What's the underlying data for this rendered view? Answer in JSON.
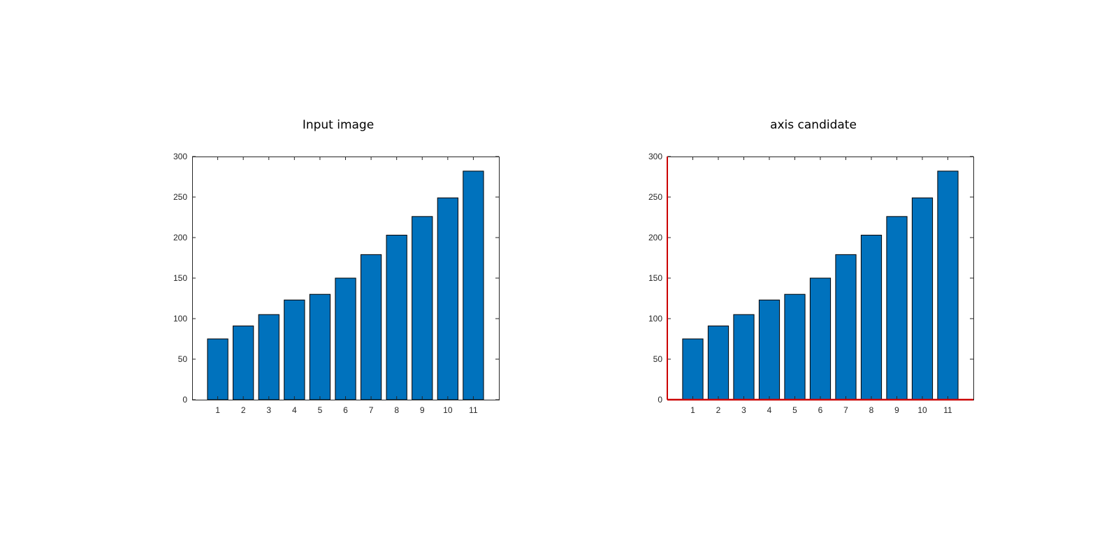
{
  "chart_data": [
    {
      "type": "bar",
      "title": "Input image",
      "categories": [
        "1",
        "2",
        "3",
        "4",
        "5",
        "6",
        "7",
        "8",
        "9",
        "10",
        "11"
      ],
      "values": [
        75,
        91,
        105,
        123,
        130,
        150,
        179,
        203,
        226,
        249,
        282
      ],
      "ylim": [
        0,
        300
      ],
      "yticks": [
        "0",
        "50",
        "100",
        "150",
        "200",
        "250",
        "300"
      ],
      "bar_color": "#0072BD",
      "highlight_axes": false,
      "grid": false
    },
    {
      "type": "bar",
      "title": "axis candidate",
      "categories": [
        "1",
        "2",
        "3",
        "4",
        "5",
        "6",
        "7",
        "8",
        "9",
        "10",
        "11"
      ],
      "values": [
        75,
        91,
        105,
        123,
        130,
        150,
        179,
        203,
        226,
        249,
        282
      ],
      "ylim": [
        0,
        300
      ],
      "yticks": [
        "0",
        "50",
        "100",
        "150",
        "200",
        "250",
        "300"
      ],
      "bar_color": "#0072BD",
      "highlight_axes": true,
      "highlight_color": "#CC0000",
      "grid": false
    }
  ]
}
